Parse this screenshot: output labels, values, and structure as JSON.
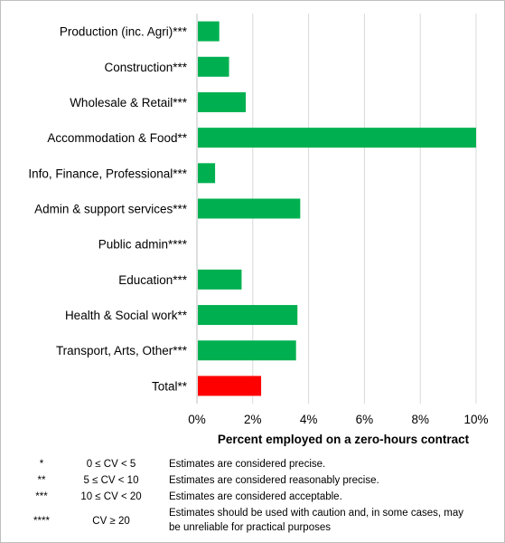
{
  "chart_data": {
    "type": "bar",
    "orientation": "horizontal",
    "categories": [
      "Production (inc. Agri)***",
      "Construction***",
      "Wholesale & Retail***",
      "Accommodation & Food**",
      "Info, Finance, Professional***",
      "Admin & support services***",
      "Public admin****",
      "Education***",
      "Health & Social work**",
      "Transport, Arts, Other***",
      "Total**"
    ],
    "values": [
      0.8,
      1.15,
      1.75,
      10.0,
      0.65,
      3.7,
      null,
      1.6,
      3.6,
      3.55,
      2.3
    ],
    "bar_colors": [
      "#00b050",
      "#00b050",
      "#00b050",
      "#00b050",
      "#00b050",
      "#00b050",
      "#00b050",
      "#00b050",
      "#00b050",
      "#00b050",
      "#ff0000"
    ],
    "xlabel": "Percent employed on a zero-hours contract",
    "xlim": [
      0,
      10
    ],
    "xticks": [
      0,
      2,
      4,
      6,
      8,
      10
    ],
    "xtick_labels": [
      "0%",
      "2%",
      "4%",
      "6%",
      "8%",
      "10%"
    ],
    "grid": "vertical"
  },
  "legend_table": [
    {
      "symbol": "*",
      "rule": "0 ≤ CV < 5",
      "desc": "Estimates are considered precise."
    },
    {
      "symbol": "**",
      "rule": "5 ≤ CV < 10",
      "desc": "Estimates are considered reasonably precise."
    },
    {
      "symbol": "***",
      "rule": "10 ≤ CV < 20",
      "desc": "Estimates are considered acceptable."
    },
    {
      "symbol": "****",
      "rule": "CV ≥ 20",
      "desc": "Estimates should be used with caution and, in some cases, may be unreliable for practical purposes"
    }
  ]
}
